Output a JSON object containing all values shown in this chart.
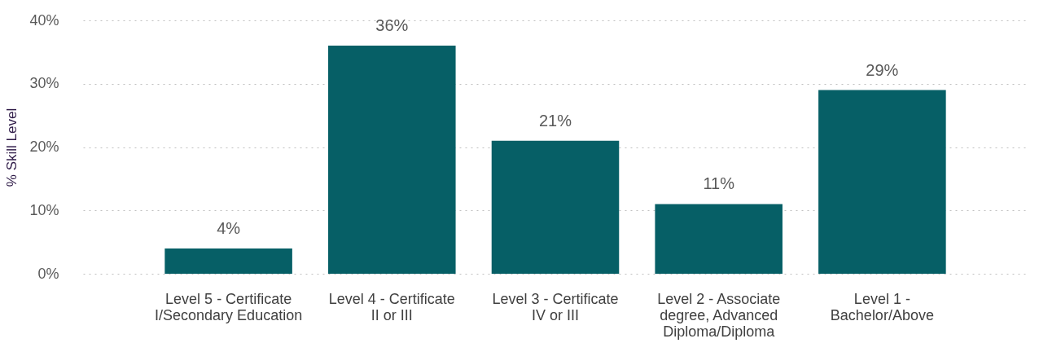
{
  "chart_data": {
    "type": "bar",
    "ylabel": "% Skill Level",
    "categories": [
      "Level 5 - Certificate I/Secondary Education",
      "Level 4 - Certificate II or III",
      "Level 3 - Certificate IV or III",
      "Level 2 - Associate degree, Advanced Diploma/Diploma",
      "Level 1 - Bachelor/Above"
    ],
    "values": [
      4,
      36,
      21,
      11,
      29
    ],
    "value_labels": [
      "4%",
      "36%",
      "21%",
      "11%",
      "29%"
    ],
    "color": "#065f66",
    "ylim": [
      0,
      40
    ],
    "yticks": [
      {
        "value": 0,
        "label": "0%"
      },
      {
        "value": 10,
        "label": "10%"
      },
      {
        "value": 20,
        "label": "20%"
      },
      {
        "value": 30,
        "label": "30%"
      },
      {
        "value": 40,
        "label": "40%"
      }
    ],
    "grid": "y"
  }
}
